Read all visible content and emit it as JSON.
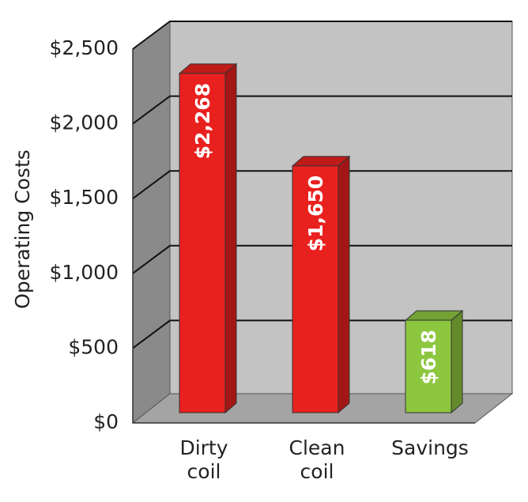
{
  "chart_data": {
    "type": "bar3d",
    "y_label": "Operating Costs",
    "categories": [
      "Dirty coil",
      "Clean coil",
      "Savings"
    ],
    "values": [
      2268,
      1650,
      618
    ],
    "value_labels": [
      "$2,268",
      "$1,650",
      "$618"
    ],
    "colors": [
      "#e8211f",
      "#e8211f",
      "#8dc63f"
    ],
    "ylim": [
      0,
      2500
    ],
    "yticks": [
      {
        "value": 0,
        "label": "$0"
      },
      {
        "value": 500,
        "label": "$500"
      },
      {
        "value": 1000,
        "label": "$1,000"
      },
      {
        "value": 1500,
        "label": "$1,500"
      },
      {
        "value": 2000,
        "label": "$2,000"
      },
      {
        "value": 2500,
        "label": "$2,500"
      }
    ],
    "grid": true
  }
}
